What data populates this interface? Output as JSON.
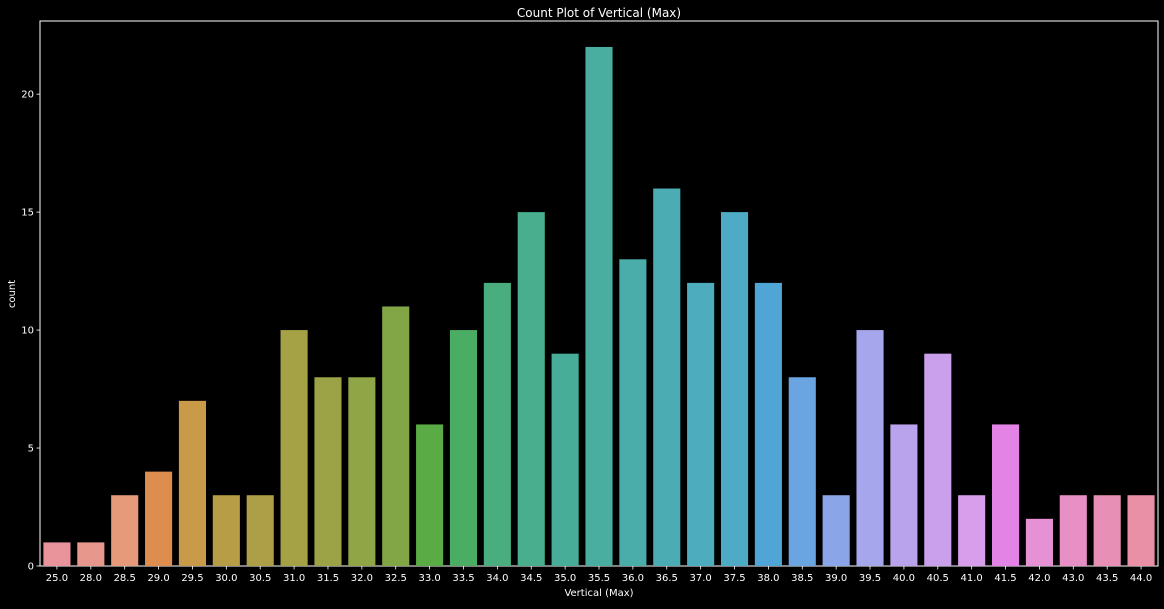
{
  "chart_data": {
    "type": "bar",
    "title": "Count Plot of Vertical (Max)",
    "xlabel": "Vertical (Max)",
    "ylabel": "count",
    "categories": [
      "25.0",
      "28.0",
      "28.5",
      "29.0",
      "29.5",
      "30.0",
      "30.5",
      "31.0",
      "31.5",
      "32.0",
      "32.5",
      "33.0",
      "33.5",
      "34.0",
      "34.5",
      "35.0",
      "35.5",
      "36.0",
      "36.5",
      "37.0",
      "37.5",
      "38.0",
      "38.5",
      "39.0",
      "39.5",
      "40.0",
      "40.5",
      "41.0",
      "41.5",
      "42.0",
      "43.0",
      "43.5",
      "44.0"
    ],
    "values": [
      1,
      1,
      3,
      4,
      7,
      3,
      3,
      10,
      8,
      8,
      11,
      6,
      10,
      12,
      15,
      9,
      22,
      13,
      16,
      12,
      15,
      12,
      8,
      3,
      10,
      6,
      9,
      3,
      6,
      2,
      3,
      3,
      3
    ],
    "colors": [
      "#e9949b",
      "#e8978d",
      "#e69a7a",
      "#dd8e4e",
      "#c99a48",
      "#b89d47",
      "#ad9f47",
      "#a5a246",
      "#9ba346",
      "#90a546",
      "#82a646",
      "#5aab45",
      "#4aad63",
      "#49ad7f",
      "#48ae8d",
      "#48ad98",
      "#49ae9f",
      "#4aadaa",
      "#4badb3",
      "#4dacbd",
      "#4eabc6",
      "#4fa5d6",
      "#6aa5e2",
      "#8aa6e8",
      "#a5a6ec",
      "#b9a3ec",
      "#caa0ec",
      "#d89deb",
      "#e483e6",
      "#e592d4",
      "#e88fc6",
      "#e88fb6",
      "#e98fa6"
    ],
    "yticks": [
      0,
      5,
      10,
      15,
      20
    ],
    "ylim": [
      0,
      23.1
    ],
    "grid": false,
    "background": "#000000",
    "text_color": "#ffffff"
  }
}
